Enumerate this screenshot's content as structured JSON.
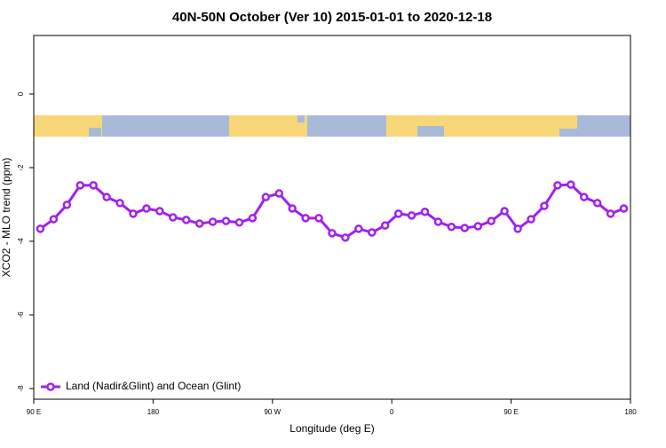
{
  "chart_data": {
    "type": "line",
    "title": "40N-50N October (Ver 10)   2015-01-01 to 2020-12-18",
    "x_label": "Longitude (deg E)",
    "y_label": "XCO2 - MLO trend (ppm)",
    "x": [
      95,
      105,
      115,
      125,
      135,
      145,
      155,
      165,
      175,
      185,
      195,
      205,
      215,
      225,
      235,
      245,
      255,
      265,
      275,
      285,
      295,
      305,
      315,
      325,
      335,
      345,
      355,
      365,
      375,
      385,
      395,
      405,
      415,
      425,
      435,
      445,
      455,
      465,
      475,
      485,
      495,
      505,
      515,
      525,
      535
    ],
    "series": [
      {
        "name": "Land (Nadir&Glint) and Ocean (Glint)",
        "color": "#a020f0",
        "values": [
          -3.66,
          -3.4,
          -3.01,
          -2.48,
          -2.48,
          -2.8,
          -2.96,
          -3.25,
          -3.11,
          -3.18,
          -3.35,
          -3.42,
          -3.52,
          -3.47,
          -3.45,
          -3.49,
          -3.37,
          -2.8,
          -2.7,
          -3.11,
          -3.37,
          -3.37,
          -3.78,
          -3.9,
          -3.66,
          -3.76,
          -3.57,
          -3.25,
          -3.3,
          -3.2,
          -3.47,
          -3.61,
          -3.64,
          -3.59,
          -3.45,
          -3.18,
          -3.66,
          -3.4,
          -3.04,
          -2.48,
          -2.46,
          -2.8,
          -2.96,
          -3.25,
          -3.11
        ]
      }
    ],
    "xlim": [
      90,
      540
    ],
    "xticks": [
      {
        "value": 90,
        "label": "90 E"
      },
      180,
      {
        "value": 270,
        "label": "90 W"
      },
      {
        "value": 360,
        "label": "0"
      },
      {
        "value": 450,
        "label": "90 E"
      },
      {
        "value": 540,
        "label": "180"
      }
    ],
    "ylim": [
      -8.29,
      1.59
    ],
    "yticks": [
      0,
      -2,
      -4,
      -6,
      -8
    ],
    "legend": "bottom-left"
  }
}
